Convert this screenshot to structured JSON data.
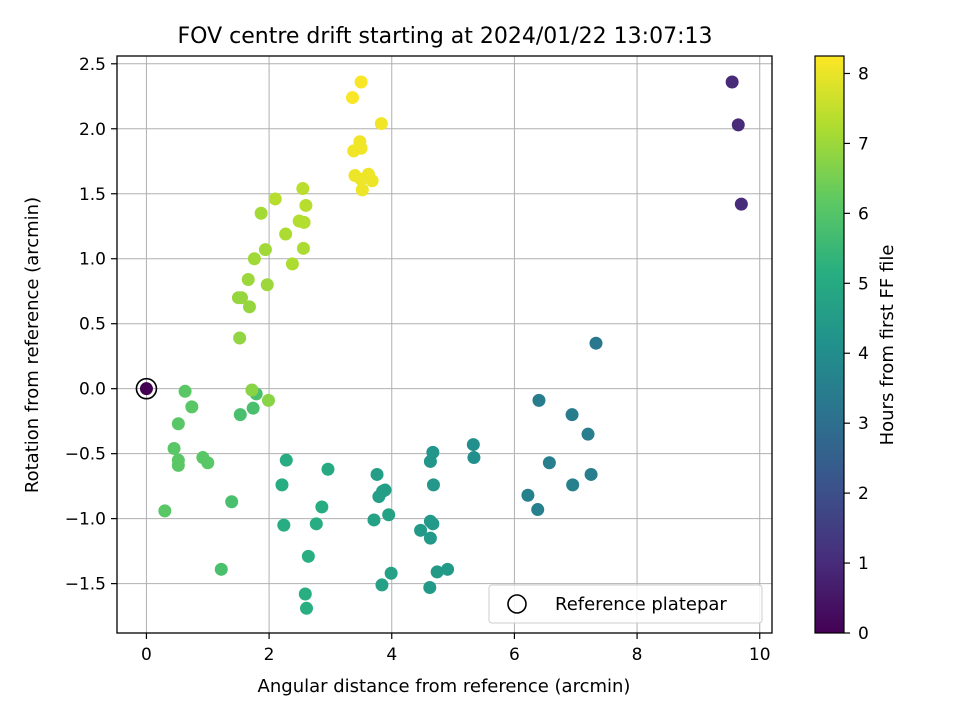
{
  "chart_data": {
    "type": "scatter",
    "title": "FOV centre drift starting at 2024/01/22 13:07:13",
    "xlabel": "Angular distance from reference (arcmin)",
    "ylabel": "Rotation from reference (arcmin)",
    "xlim": [
      -0.48,
      10.2
    ],
    "ylim": [
      -1.88,
      2.56
    ],
    "x_ticks": [
      0,
      2,
      4,
      6,
      8,
      10
    ],
    "y_ticks": [
      -1.5,
      -1.0,
      -0.5,
      0.0,
      0.5,
      1.0,
      1.5,
      2.0,
      2.5
    ],
    "grid": true,
    "colormap": "viridis",
    "colorbar": {
      "label": "Hours from first FF file",
      "range": [
        0,
        8.25
      ],
      "ticks": [
        0,
        1,
        2,
        3,
        4,
        5,
        6,
        7,
        8
      ]
    },
    "legend": {
      "placement": "lower right",
      "entries": [
        "Reference platepar"
      ]
    },
    "reference_point": {
      "x": 0,
      "y": 0,
      "hours": 0
    },
    "points": [
      {
        "x": 9.55,
        "y": 2.36,
        "h": 0.95
      },
      {
        "x": 9.65,
        "y": 2.03,
        "h": 0.98
      },
      {
        "x": 9.7,
        "y": 1.42,
        "h": 1.0
      },
      {
        "x": 7.33,
        "y": 0.35,
        "h": 3.3
      },
      {
        "x": 6.4,
        "y": -0.09,
        "h": 3.45
      },
      {
        "x": 6.94,
        "y": -0.2,
        "h": 3.45
      },
      {
        "x": 7.2,
        "y": -0.35,
        "h": 3.5
      },
      {
        "x": 6.57,
        "y": -0.57,
        "h": 3.5
      },
      {
        "x": 7.25,
        "y": -0.66,
        "h": 3.5
      },
      {
        "x": 6.95,
        "y": -0.74,
        "h": 3.6
      },
      {
        "x": 6.22,
        "y": -0.82,
        "h": 3.6
      },
      {
        "x": 6.38,
        "y": -0.93,
        "h": 3.6
      },
      {
        "x": 5.33,
        "y": -0.43,
        "h": 4.05
      },
      {
        "x": 5.34,
        "y": -0.53,
        "h": 4.05
      },
      {
        "x": 4.67,
        "y": -0.49,
        "h": 4.3
      },
      {
        "x": 4.63,
        "y": -0.56,
        "h": 4.3
      },
      {
        "x": 4.68,
        "y": -0.74,
        "h": 4.35
      },
      {
        "x": 4.63,
        "y": -1.02,
        "h": 4.4
      },
      {
        "x": 4.67,
        "y": -1.04,
        "h": 4.4
      },
      {
        "x": 4.63,
        "y": -1.15,
        "h": 4.4
      },
      {
        "x": 4.47,
        "y": -1.09,
        "h": 4.45
      },
      {
        "x": 4.74,
        "y": -1.41,
        "h": 4.45
      },
      {
        "x": 4.91,
        "y": -1.39,
        "h": 4.45
      },
      {
        "x": 4.62,
        "y": -1.53,
        "h": 4.45
      },
      {
        "x": 3.76,
        "y": -0.66,
        "h": 4.6
      },
      {
        "x": 3.89,
        "y": -0.78,
        "h": 4.6
      },
      {
        "x": 3.85,
        "y": -0.79,
        "h": 4.6
      },
      {
        "x": 3.79,
        "y": -0.83,
        "h": 4.6
      },
      {
        "x": 3.95,
        "y": -0.97,
        "h": 4.7
      },
      {
        "x": 3.71,
        "y": -1.01,
        "h": 4.7
      },
      {
        "x": 3.99,
        "y": -1.42,
        "h": 4.7
      },
      {
        "x": 3.84,
        "y": -1.51,
        "h": 4.7
      },
      {
        "x": 2.96,
        "y": -0.62,
        "h": 5.0
      },
      {
        "x": 2.28,
        "y": -0.55,
        "h": 5.1
      },
      {
        "x": 2.21,
        "y": -0.74,
        "h": 5.1
      },
      {
        "x": 2.86,
        "y": -0.91,
        "h": 5.1
      },
      {
        "x": 2.77,
        "y": -1.04,
        "h": 5.1
      },
      {
        "x": 2.24,
        "y": -1.05,
        "h": 5.1
      },
      {
        "x": 2.64,
        "y": -1.29,
        "h": 5.15
      },
      {
        "x": 2.59,
        "y": -1.58,
        "h": 5.15
      },
      {
        "x": 2.61,
        "y": -1.69,
        "h": 5.15
      },
      {
        "x": 1.79,
        "y": -0.04,
        "h": 5.8
      },
      {
        "x": 1.53,
        "y": -0.2,
        "h": 5.8
      },
      {
        "x": 1.74,
        "y": -0.15,
        "h": 5.8
      },
      {
        "x": 1.39,
        "y": -0.87,
        "h": 5.8
      },
      {
        "x": 1.22,
        "y": -1.39,
        "h": 5.8
      },
      {
        "x": 0.63,
        "y": -0.02,
        "h": 6.1
      },
      {
        "x": 0.74,
        "y": -0.14,
        "h": 6.1
      },
      {
        "x": 0.52,
        "y": -0.27,
        "h": 6.1
      },
      {
        "x": 0.45,
        "y": -0.46,
        "h": 6.1
      },
      {
        "x": 0.52,
        "y": -0.55,
        "h": 6.1
      },
      {
        "x": 0.52,
        "y": -0.59,
        "h": 6.1
      },
      {
        "x": 0.92,
        "y": -0.53,
        "h": 6.1
      },
      {
        "x": 1.0,
        "y": -0.57,
        "h": 6.1
      },
      {
        "x": 0.3,
        "y": -0.94,
        "h": 6.1
      },
      {
        "x": 1.72,
        "y": -0.01,
        "h": 6.75
      },
      {
        "x": 1.99,
        "y": -0.09,
        "h": 6.75
      },
      {
        "x": 1.52,
        "y": 0.39,
        "h": 6.85
      },
      {
        "x": 1.5,
        "y": 0.7,
        "h": 6.9
      },
      {
        "x": 1.55,
        "y": 0.7,
        "h": 6.9
      },
      {
        "x": 1.68,
        "y": 0.63,
        "h": 6.9
      },
      {
        "x": 1.66,
        "y": 0.84,
        "h": 7.0
      },
      {
        "x": 1.97,
        "y": 0.8,
        "h": 7.0
      },
      {
        "x": 1.76,
        "y": 1.0,
        "h": 7.05
      },
      {
        "x": 1.94,
        "y": 1.07,
        "h": 7.05
      },
      {
        "x": 1.87,
        "y": 1.35,
        "h": 7.1
      },
      {
        "x": 2.38,
        "y": 0.96,
        "h": 7.2
      },
      {
        "x": 2.56,
        "y": 1.08,
        "h": 7.2
      },
      {
        "x": 2.27,
        "y": 1.19,
        "h": 7.2
      },
      {
        "x": 2.49,
        "y": 1.29,
        "h": 7.3
      },
      {
        "x": 2.57,
        "y": 1.28,
        "h": 7.3
      },
      {
        "x": 2.1,
        "y": 1.46,
        "h": 7.35
      },
      {
        "x": 2.6,
        "y": 1.41,
        "h": 7.35
      },
      {
        "x": 2.55,
        "y": 1.54,
        "h": 7.4
      },
      {
        "x": 3.4,
        "y": 1.64,
        "h": 8.05
      },
      {
        "x": 3.5,
        "y": 1.61,
        "h": 8.05
      },
      {
        "x": 3.62,
        "y": 1.65,
        "h": 8.05
      },
      {
        "x": 3.68,
        "y": 1.6,
        "h": 8.05
      },
      {
        "x": 3.52,
        "y": 1.53,
        "h": 8.05
      },
      {
        "x": 3.38,
        "y": 1.83,
        "h": 8.1
      },
      {
        "x": 3.48,
        "y": 1.9,
        "h": 8.1
      },
      {
        "x": 3.5,
        "y": 1.85,
        "h": 8.1
      },
      {
        "x": 3.83,
        "y": 2.04,
        "h": 8.1
      },
      {
        "x": 3.36,
        "y": 2.24,
        "h": 8.2
      },
      {
        "x": 3.5,
        "y": 2.36,
        "h": 8.2
      }
    ]
  }
}
